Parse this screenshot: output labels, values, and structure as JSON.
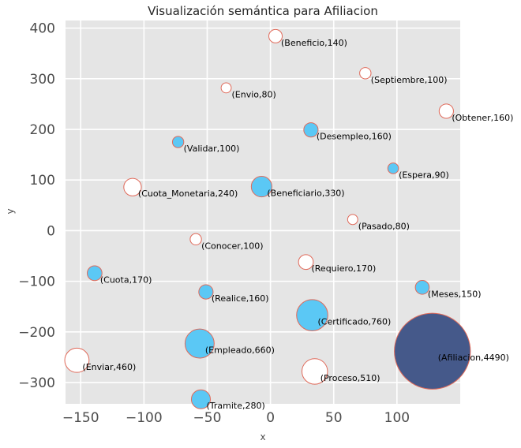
{
  "chart_data": {
    "type": "scatter",
    "title": "Visualización semántica para Afiliacion",
    "xlabel": "x",
    "ylabel": "y",
    "xlim": [
      -162,
      150
    ],
    "ylim": [
      -342,
      415
    ],
    "xticks": [
      -150,
      -100,
      -50,
      0,
      50,
      100
    ],
    "yticks": [
      -300,
      -200,
      -100,
      0,
      100,
      200,
      300,
      400
    ],
    "xtick_labels": [
      "−150",
      "−100",
      "−50",
      "0",
      "50",
      "100"
    ],
    "ytick_labels": [
      "−300",
      "−200",
      "−100",
      "0",
      "100",
      "200",
      "300",
      "400"
    ],
    "grid": true,
    "colors": {
      "background": "#e5e5e5",
      "grid": "#ffffff",
      "edge": "#e06a5a",
      "filled": "#5bc8f5",
      "hollow": "#ffffff",
      "target": "#45598a"
    },
    "points": [
      {
        "word": "Beneficio",
        "value": 140,
        "x": 4,
        "y": 384,
        "style": "hollow",
        "label": "(Beneficio,140)"
      },
      {
        "word": "Septiembre",
        "value": 100,
        "x": 75,
        "y": 311,
        "style": "hollow",
        "label": "(Septiembre,100)"
      },
      {
        "word": "Envio",
        "value": 80,
        "x": -35,
        "y": 282,
        "style": "hollow",
        "label": "(Envio,80)"
      },
      {
        "word": "Obtener",
        "value": 160,
        "x": 139,
        "y": 236,
        "style": "hollow",
        "label": "(Obtener,160)"
      },
      {
        "word": "Desempleo",
        "value": 160,
        "x": 32,
        "y": 199,
        "style": "filled",
        "label": "(Desempleo,160)"
      },
      {
        "word": "Validar",
        "value": 100,
        "x": -73,
        "y": 175,
        "style": "filled",
        "label": "(Validar,100)"
      },
      {
        "word": "Espera",
        "value": 90,
        "x": 97,
        "y": 123,
        "style": "filled",
        "label": "(Espera,90)"
      },
      {
        "word": "Cuota_Monetaria",
        "value": 240,
        "x": -109,
        "y": 86,
        "style": "hollow",
        "label": "(Cuota_Monetaria,240)"
      },
      {
        "word": "Beneficiario",
        "value": 330,
        "x": -7,
        "y": 87,
        "style": "filled",
        "label": "(Beneficiario,330)"
      },
      {
        "word": "Pasado",
        "value": 80,
        "x": 65,
        "y": 22,
        "style": "hollow",
        "label": "(Pasado,80)"
      },
      {
        "word": "Conocer",
        "value": 100,
        "x": -59,
        "y": -17,
        "style": "hollow",
        "label": "(Conocer,100)"
      },
      {
        "word": "Requiero",
        "value": 170,
        "x": 28,
        "y": -62,
        "style": "hollow",
        "label": "(Requiero,170)"
      },
      {
        "word": "Cuota",
        "value": 170,
        "x": -139,
        "y": -84,
        "style": "filled",
        "label": "(Cuota,170)"
      },
      {
        "word": "Meses",
        "value": 150,
        "x": 120,
        "y": -112,
        "style": "filled",
        "label": "(Meses,150)"
      },
      {
        "word": "Realice",
        "value": 160,
        "x": -51,
        "y": -121,
        "style": "filled",
        "label": "(Realice,160)"
      },
      {
        "word": "Certificado",
        "value": 760,
        "x": 33,
        "y": -167,
        "style": "filled",
        "label": "(Certificado,760)"
      },
      {
        "word": "Empleado",
        "value": 660,
        "x": -56,
        "y": -223,
        "style": "filled",
        "label": "(Empleado,660)"
      },
      {
        "word": "Afiliacion",
        "value": 4490,
        "x": 128,
        "y": -238,
        "style": "target",
        "label": "(Afiliacion,4490)"
      },
      {
        "word": "Enviar",
        "value": 460,
        "x": -153,
        "y": -256,
        "style": "hollow",
        "label": "(Enviar,460)"
      },
      {
        "word": "Proceso",
        "value": 510,
        "x": 35,
        "y": -278,
        "style": "hollow",
        "label": "(Proceso,510)"
      },
      {
        "word": "Tramite",
        "value": 280,
        "x": -55,
        "y": -333,
        "style": "filled",
        "label": "(Tramite,280)"
      }
    ]
  }
}
